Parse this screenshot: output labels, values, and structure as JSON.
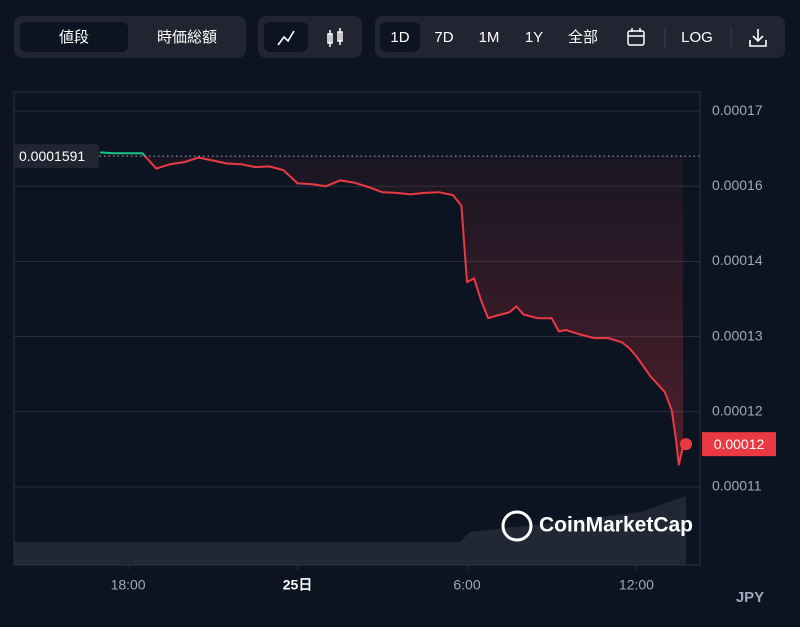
{
  "ui": {
    "tabs": [
      "値段",
      "時価総額"
    ],
    "ranges": [
      "1D",
      "7D",
      "1M",
      "1Y",
      "全部"
    ],
    "log": "LOG",
    "watermark": "CoinMarketCap",
    "currency": "JPY"
  },
  "chart_data": {
    "type": "line",
    "x": [
      17.0,
      17.5,
      18.0,
      18.5,
      19.0,
      19.5,
      20.0,
      20.5,
      21.0,
      21.5,
      22.0,
      22.5,
      23.0,
      23.5,
      24.0,
      24.5,
      25.0,
      25.5,
      26.0,
      26.5,
      27.0,
      27.5,
      28.0,
      28.5,
      29.0,
      29.5,
      29.8,
      30.0,
      30.25,
      30.5,
      30.75,
      31.0,
      31.5,
      31.75,
      32.0,
      32.5,
      33.0,
      33.25,
      33.5,
      34.0,
      34.5,
      35.0,
      35.5,
      35.75,
      36.0,
      36.5,
      37.0,
      37.25,
      37.4,
      37.5,
      37.65
    ],
    "series": [
      {
        "color": "#ea3943",
        "color_above": "#16c784",
        "values": [
          0.0001596,
          0.0001595,
          0.0001595,
          0.0001595,
          0.0001574,
          0.000158,
          0.0001583,
          0.0001589,
          0.0001585,
          0.0001581,
          0.000158,
          0.0001576,
          0.0001577,
          0.0001572,
          0.0001554,
          0.0001553,
          0.000155,
          0.0001558,
          0.0001555,
          0.0001549,
          0.0001542,
          0.0001541,
          0.0001539,
          0.0001541,
          0.0001542,
          0.0001538,
          0.0001524,
          0.000142,
          0.0001425,
          0.0001395,
          0.0001371,
          0.0001374,
          0.0001379,
          0.0001387,
          0.0001376,
          0.0001371,
          0.0001371,
          0.0001353,
          0.0001355,
          0.0001349,
          0.0001344,
          0.0001344,
          0.0001338,
          0.000133,
          0.0001319,
          0.0001292,
          0.0001271,
          0.0001246,
          0.0001206,
          0.0001172,
          0.0001197
        ]
      }
    ],
    "reference_price": {
      "value": 0.0001591,
      "label": "0.0001591"
    },
    "last_price": 0.00012,
    "xlim": [
      13.96,
      38.25
    ],
    "xticks": [
      {
        "value": 18,
        "label": "18:00"
      },
      {
        "value": 24,
        "label": "25日"
      },
      {
        "value": 30,
        "label": "6:00"
      },
      {
        "value": 36,
        "label": "12:00"
      }
    ],
    "ylim": [
      0.0001036,
      0.0001678
    ],
    "yticks": [
      {
        "value": 0.0001652,
        "label": "0.00017"
      },
      {
        "value": 0.000155,
        "label": "0.00016"
      },
      {
        "value": 0.0001448,
        "label": "0.00014"
      },
      {
        "value": 0.0001346,
        "label": "0.00013"
      },
      {
        "value": 0.0001244,
        "label": "0.00012"
      },
      {
        "value": 0.0001142,
        "label": "0.00011"
      }
    ],
    "grid": true
  }
}
